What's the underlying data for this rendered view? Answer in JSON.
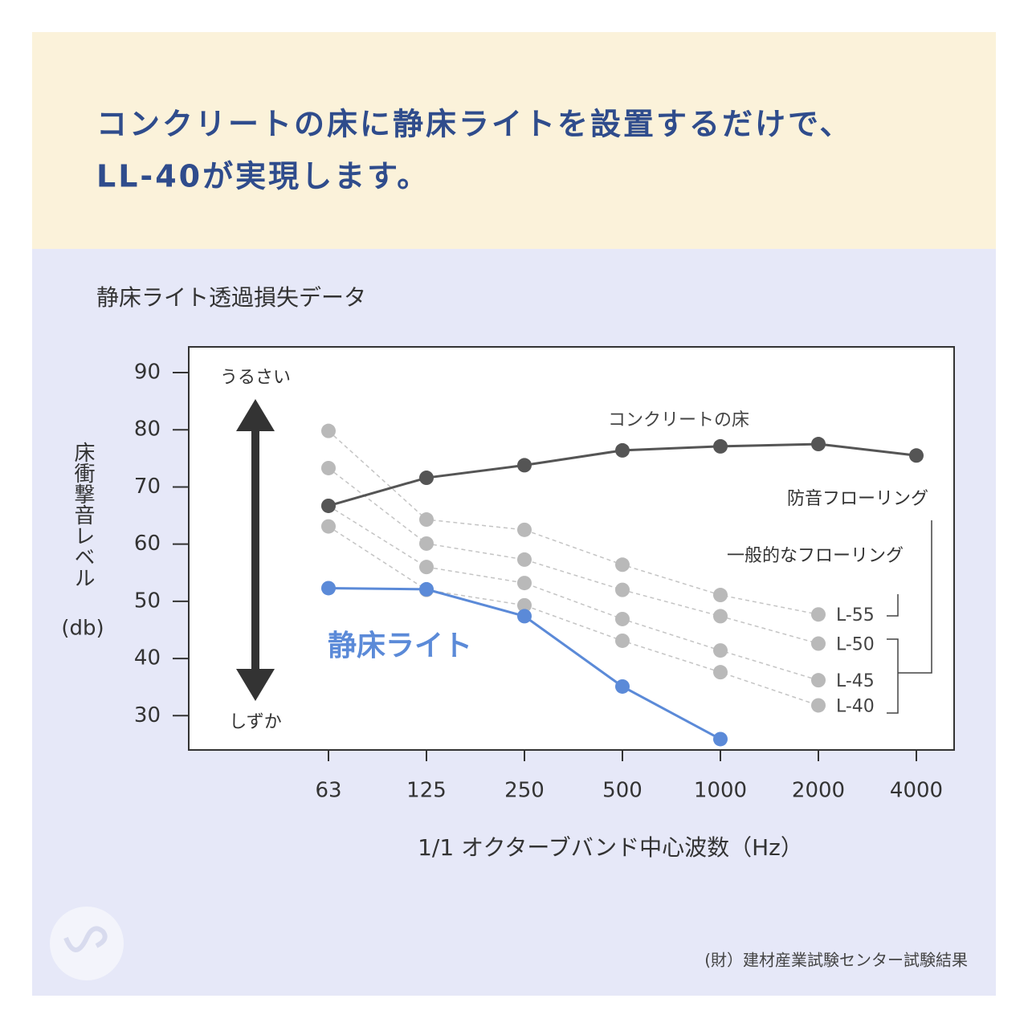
{
  "header": {
    "headline": [
      "コンクリートの床に静床ライトを設置するだけで、",
      "LL-40が実現します。"
    ]
  },
  "chart_data": {
    "type": "line",
    "title": "静床ライト透過損失データ",
    "y_label": "床衝撃音レベル",
    "y_unit": "(db)",
    "x_label": "1/1 オクターブバンド中心波数（Hz）",
    "categories": [
      "63",
      "125",
      "250",
      "500",
      "1000",
      "2000",
      "4000"
    ],
    "ylim": [
      24,
      94.5
    ],
    "yticks": [
      30,
      40,
      50,
      60,
      70,
      80,
      90
    ],
    "series": [
      {
        "name": "L-55",
        "color": "#b9b9b9",
        "dashed": true,
        "values": [
          79.8,
          64.3,
          62.5,
          56.4,
          51.1,
          47.7,
          null
        ]
      },
      {
        "name": "L-50",
        "color": "#b9b9b9",
        "dashed": true,
        "values": [
          73.3,
          60.1,
          57.3,
          52.0,
          47.4,
          42.6,
          null
        ]
      },
      {
        "name": "L-45",
        "color": "#b9b9b9",
        "dashed": true,
        "values": [
          66.7,
          56.0,
          53.2,
          46.9,
          41.4,
          36.2,
          null
        ]
      },
      {
        "name": "L-40",
        "color": "#b9b9b9",
        "dashed": true,
        "values": [
          63.1,
          52.0,
          49.3,
          43.1,
          37.6,
          31.8,
          null
        ]
      },
      {
        "name": "コンクリートの床",
        "color": "#555555",
        "dashed": false,
        "values": [
          66.7,
          71.6,
          73.8,
          76.4,
          77.1,
          77.5,
          75.5
        ]
      },
      {
        "name": "静床ライト",
        "color": "#5b8ad8",
        "dashed": false,
        "values": [
          52.3,
          52.1,
          47.4,
          35.1,
          25.9,
          null,
          null
        ]
      }
    ],
    "annotations": {
      "loud": "うるさい",
      "quiet": "しずか",
      "soundproof": "防音フローリング",
      "general": "一般的なフローリング"
    },
    "source": "(財）建材産業試験センター試験結果"
  }
}
